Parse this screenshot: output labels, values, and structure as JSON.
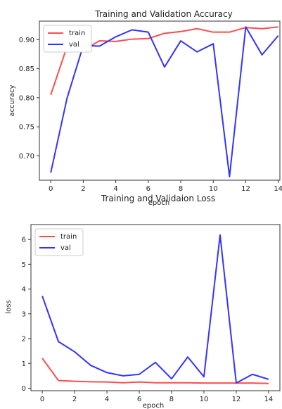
{
  "chart_data": [
    {
      "type": "line",
      "title": "Training and Validation Accuracy",
      "xlabel": "epoch",
      "ylabel": "accuracy",
      "x": [
        0,
        1,
        2,
        3,
        4,
        5,
        6,
        7,
        8,
        9,
        10,
        11,
        12,
        13,
        14
      ],
      "xlim": [
        -0.7,
        14.1
      ],
      "ylim": [
        0.658,
        0.932
      ],
      "xticks": [
        0,
        2,
        4,
        6,
        8,
        10,
        12,
        14
      ],
      "yticks": [
        0.7,
        0.75,
        0.8,
        0.85,
        0.9
      ],
      "ytick_labels": [
        "0.70",
        "0.75",
        "0.80",
        "0.85",
        "0.90"
      ],
      "grid": false,
      "legend_position": "top-left",
      "series": [
        {
          "name": "train",
          "color": "#ff4d4d",
          "values": [
            0.805,
            0.888,
            0.882,
            0.898,
            0.897,
            0.901,
            0.902,
            0.911,
            0.914,
            0.919,
            0.913,
            0.913,
            0.921,
            0.919,
            0.922
          ]
        },
        {
          "name": "val",
          "color": "#3333ff",
          "values": [
            0.671,
            0.799,
            0.89,
            0.889,
            0.905,
            0.917,
            0.913,
            0.853,
            0.898,
            0.879,
            0.893,
            0.664,
            0.922,
            0.874,
            0.907
          ]
        }
      ]
    },
    {
      "type": "line",
      "title": "Training and Validaion Loss",
      "xlabel": "epoch",
      "ylabel": "loss",
      "x": [
        0,
        1,
        2,
        3,
        4,
        5,
        6,
        7,
        8,
        9,
        10,
        11,
        12,
        13,
        14
      ],
      "xlim": [
        -0.7,
        14.7
      ],
      "ylim": [
        -0.1,
        6.6
      ],
      "xticks": [
        0,
        2,
        4,
        6,
        8,
        10,
        12,
        14
      ],
      "yticks": [
        0,
        1,
        2,
        3,
        4,
        5,
        6
      ],
      "ytick_labels": [
        "0",
        "1",
        "2",
        "3",
        "4",
        "5",
        "6"
      ],
      "grid": false,
      "legend_position": "top-left",
      "series": [
        {
          "name": "train",
          "color": "#ff4d4d",
          "values": [
            1.21,
            0.31,
            0.28,
            0.26,
            0.25,
            0.22,
            0.25,
            0.22,
            0.22,
            0.22,
            0.21,
            0.21,
            0.21,
            0.21,
            0.19
          ]
        },
        {
          "name": "val",
          "color": "#3333ff",
          "values": [
            3.72,
            1.88,
            1.47,
            0.92,
            0.63,
            0.5,
            0.56,
            1.04,
            0.38,
            1.26,
            0.46,
            6.18,
            0.21,
            0.56,
            0.36
          ]
        }
      ]
    }
  ]
}
